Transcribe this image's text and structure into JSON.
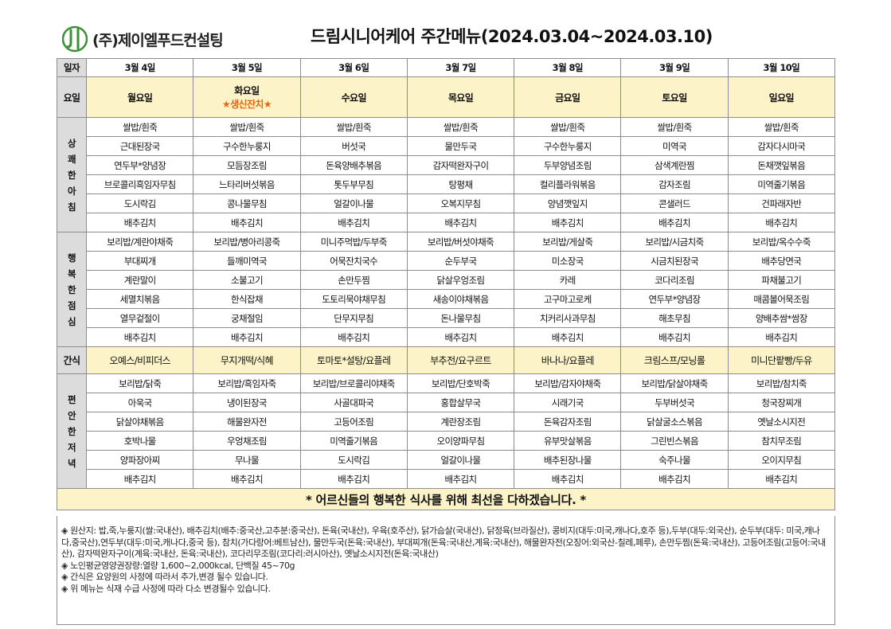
{
  "header": {
    "company": "(주)제이엘푸드컨설팅",
    "title": "드림시니어케어 주간메뉴(2024.03.04~2024.03.10)"
  },
  "labels": {
    "date": "일자",
    "weekday": "요일",
    "breakfast": "상쾌한아침",
    "lunch": "행복한점심",
    "snack": "간식",
    "dinner": "편안한저녁"
  },
  "days": [
    {
      "date": "3월 4일",
      "weekday": "월요일",
      "event": ""
    },
    {
      "date": "3월 5일",
      "weekday": "화요일",
      "event": "★생신잔치★"
    },
    {
      "date": "3월 6일",
      "weekday": "수요일",
      "event": ""
    },
    {
      "date": "3월 7일",
      "weekday": "목요일",
      "event": ""
    },
    {
      "date": "3월 8일",
      "weekday": "금요일",
      "event": ""
    },
    {
      "date": "3월 9일",
      "weekday": "토요일",
      "event": ""
    },
    {
      "date": "3월 10일",
      "weekday": "일요일",
      "event": ""
    }
  ],
  "breakfast": [
    [
      "쌀밥/흰죽",
      "쌀밥/흰죽",
      "쌀밥/흰죽",
      "쌀밥/흰죽",
      "쌀밥/흰죽",
      "쌀밥/흰죽",
      "쌀밥/흰죽"
    ],
    [
      "근대된장국",
      "구수한누룽지",
      "버섯국",
      "물만두국",
      "구수한누룽지",
      "미역국",
      "감자다시마국"
    ],
    [
      "연두부*양념장",
      "모듬장조림",
      "돈육양배추볶음",
      "감자떡완자구이",
      "두부양념조림",
      "삼색계란찜",
      "돈채깻잎볶음"
    ],
    [
      "브로콜리흑임자무침",
      "느타리버섯볶음",
      "톳두부무침",
      "탕평채",
      "컬리플라워볶음",
      "감자조림",
      "미역줄기볶음"
    ],
    [
      "도시락김",
      "콩나물무침",
      "얼갈이나물",
      "오복지무침",
      "양념깻잎지",
      "콘샐러드",
      "건파래자반"
    ],
    [
      "배추김치",
      "배추김치",
      "배추김치",
      "배추김치",
      "배추김치",
      "배추김치",
      "배추김치"
    ]
  ],
  "lunch": [
    [
      "보리밥/계란야채죽",
      "보리밥/병아리콩죽",
      "미니주먹밥/두부죽",
      "보리밥/버섯야채죽",
      "보리밥/게살죽",
      "보리밥/시금치죽",
      "보리밥/옥수수죽"
    ],
    [
      "부대찌개",
      "들깨미역국",
      "어묵잔치국수",
      "순두부국",
      "미소장국",
      "시금치된장국",
      "배추당면국"
    ],
    [
      "계란말이",
      "소불고기",
      "손만두찜",
      "닭살우엉조림",
      "카레",
      "코다리조림",
      "파채불고기"
    ],
    [
      "세멸치볶음",
      "한식잡채",
      "도토리묵야채무침",
      "새송이야채볶음",
      "고구마고로케",
      "연두부*양념장",
      "매콤볼어묵조림"
    ],
    [
      "열무겉절이",
      "궁채절임",
      "단무지무침",
      "돈나물무침",
      "치커리사과무침",
      "해초무침",
      "양배추쌈*쌈장"
    ],
    [
      "배추김치",
      "배추김치",
      "배추김치",
      "배추김치",
      "배추김치",
      "배추김치",
      "배추김치"
    ]
  ],
  "snack": [
    "오예스/비피더스",
    "무지개떡/식혜",
    "토마토*설탕/요플레",
    "부추전/요구르트",
    "바나나/요플레",
    "크림스프/모닝롤",
    "미니단팥빵/두유"
  ],
  "dinner": [
    [
      "보리밥/닭죽",
      "보리밥/흑임자죽",
      "보리밥/브로콜리야채죽",
      "보리밥/단호박죽",
      "보리밥/감자야채죽",
      "보리밥/닭살야채죽",
      "보리밥/참치죽"
    ],
    [
      "아욱국",
      "냉이된장국",
      "사골대파국",
      "홍합살무국",
      "시래기국",
      "두부버섯국",
      "청국장찌개"
    ],
    [
      "닭살야채볶음",
      "해물완자전",
      "고등어조림",
      "계란장조림",
      "돈육감자조림",
      "닭살굴소스볶음",
      "옛날소시지전"
    ],
    [
      "호박나물",
      "우엉채조림",
      "미역줄기볶음",
      "오이양파무침",
      "유부맛살볶음",
      "그린빈스볶음",
      "참치무조림"
    ],
    [
      "양파장아찌",
      "무나물",
      "도시락김",
      "얼갈이나물",
      "배추된장나물",
      "숙주나물",
      "오이지무침"
    ],
    [
      "배추김치",
      "배추김치",
      "배추김치",
      "배추김치",
      "배추김치",
      "배추김치",
      "배추김치"
    ]
  ],
  "greeting": "* 어르신들의 행복한 식사를 위해 최선을 다하겠습니다. *",
  "notes": [
    "◈ 원산지: 밥,죽,누룽지(쌀:국내산), 배추김치(배추:중국산,고추분:중국산), 돈육(국내산), 우육(호주산), 닭가슴살(국내산), 닭정육(브라질산), 콩비지(대두:미국,캐나다,호주 등),두부(대두:외국산), 순두부(대두: 미국,캐나다,중국산),연두부(대두:미국,캐나다,중국 등), 참치(가다랑어:베트남산), 물만두국(돈육:국내산), 부대찌개(돈육:국내산,계육:국내산), 해물완자전(오징어:외국산-칠레,페루), 손만두찜(돈육:국내산), 고등어조림(고등어:국내산), 감자떡완자구이(계육:국내산, 돈육:국내산), 코다리무조림(코다리:러시아산), 옛날소시지전(돈육:국내산)",
    "◈ 노인평균영양권장량:열량 1,600~2,000kcal, 단백질 45~70g",
    "◈ 간식은 요양원의 사정에 따라서 추가,변경 될수 있습니다.",
    "◈ 위 메뉴는 식재 수급 사정에 따라 다소 변경될수 있습니다."
  ],
  "colors": {
    "header_fill": "#fdf3c8",
    "label_fill": "#dcdcdc",
    "logo_green": "#3e8e3a",
    "event_orange": "#e8660c"
  }
}
